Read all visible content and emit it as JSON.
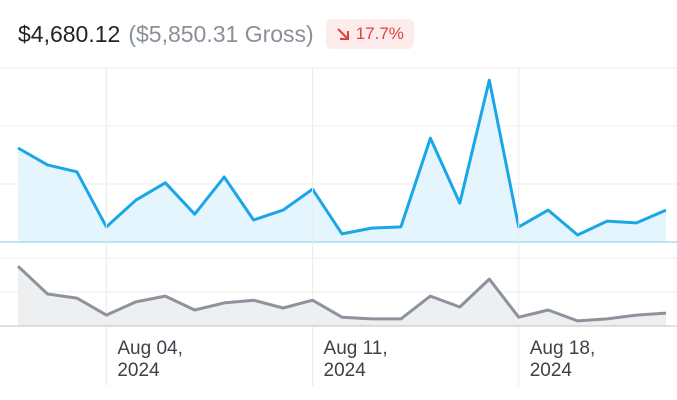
{
  "header": {
    "net": "$4,680.12",
    "gross": "($5,850.31 Gross)",
    "change": "17.7%"
  },
  "chart_data": [
    {
      "type": "area",
      "color": "#1ba6e8",
      "fill": "#e4f5fd",
      "x": [
        "2024-08-01",
        "2024-08-02",
        "2024-08-03",
        "2024-08-04",
        "2024-08-05",
        "2024-08-06",
        "2024-08-07",
        "2024-08-08",
        "2024-08-09",
        "2024-08-10",
        "2024-08-11",
        "2024-08-12",
        "2024-08-13",
        "2024-08-14",
        "2024-08-15",
        "2024-08-16",
        "2024-08-17",
        "2024-08-18",
        "2024-08-19",
        "2024-08-20",
        "2024-08-21",
        "2024-08-22",
        "2024-08-23"
      ],
      "values": [
        1.62,
        1.33,
        1.21,
        0.26,
        0.72,
        1.02,
        0.48,
        1.12,
        0.38,
        0.55,
        0.91,
        0.14,
        0.24,
        0.26,
        1.79,
        0.67,
        2.79,
        0.26,
        0.55,
        0.12,
        0.36,
        0.33,
        0.55
      ],
      "xlim": [
        "2024-08-01",
        "2024-08-23"
      ],
      "ylim": [
        0,
        3
      ],
      "yticks": [
        0,
        1,
        2,
        3
      ],
      "grid": true
    },
    {
      "type": "area",
      "color": "#8e939b",
      "fill": "#eeeff1",
      "x": [
        "2024-08-01",
        "2024-08-02",
        "2024-08-03",
        "2024-08-04",
        "2024-08-05",
        "2024-08-06",
        "2024-08-07",
        "2024-08-08",
        "2024-08-09",
        "2024-08-10",
        "2024-08-11",
        "2024-08-12",
        "2024-08-13",
        "2024-08-14",
        "2024-08-15",
        "2024-08-16",
        "2024-08-17",
        "2024-08-18",
        "2024-08-19",
        "2024-08-20",
        "2024-08-21",
        "2024-08-22",
        "2024-08-23"
      ],
      "values": [
        1.76,
        0.94,
        0.82,
        0.32,
        0.71,
        0.88,
        0.47,
        0.68,
        0.76,
        0.53,
        0.76,
        0.26,
        0.21,
        0.21,
        0.88,
        0.56,
        1.38,
        0.26,
        0.47,
        0.15,
        0.21,
        0.32,
        0.38
      ],
      "xlim": [
        "2024-08-01",
        "2024-08-23"
      ],
      "ylim": [
        0,
        2
      ],
      "yticks": [
        0,
        1,
        2
      ],
      "grid": true,
      "xticks": [
        {
          "value": "2024-08-04",
          "label": "Aug 04,\n2024"
        },
        {
          "value": "2024-08-11",
          "label": "Aug 11,\n2024"
        },
        {
          "value": "2024-08-18",
          "label": "Aug 18,\n2024"
        }
      ]
    }
  ]
}
